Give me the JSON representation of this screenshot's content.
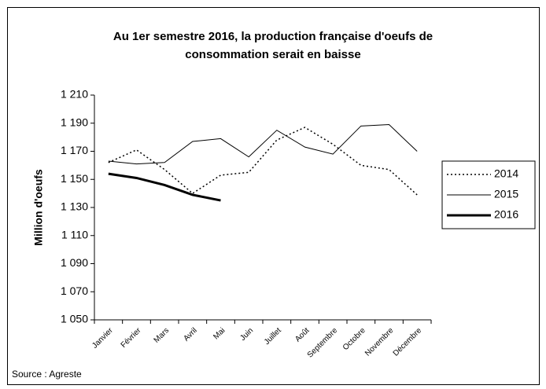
{
  "chart_data": {
    "type": "line",
    "title": [
      "Au 1er semestre 2016, la production française d'oeufs de",
      "consommation serait  en baisse"
    ],
    "y_label": "Million d'oeufs",
    "source": "Source : Agreste",
    "categories": [
      "Janvier",
      "Février",
      "Mars",
      "Avril",
      "Mai",
      "Juin",
      "Juillet",
      "Août",
      "Septembre",
      "Octobre",
      "Novembre",
      "Décembre"
    ],
    "series": [
      {
        "name": "2014",
        "color": "#000000",
        "line_style": "dotted",
        "line_width": 1.5,
        "values": [
          1162,
          1171,
          1157,
          1140,
          1153,
          1155,
          1178,
          1187,
          1175,
          1160,
          1157,
          1139
        ]
      },
      {
        "name": "2015",
        "color": "#000000",
        "line_style": "solid",
        "line_width": 1,
        "values": [
          1163,
          1161,
          1162,
          1177,
          1179,
          1166,
          1185,
          1173,
          1168,
          1188,
          1189,
          1170
        ]
      },
      {
        "name": "2016",
        "color": "#000000",
        "line_style": "solid",
        "line_width": 3,
        "values": [
          1154,
          1151,
          1146,
          1139,
          1135,
          null,
          null,
          null,
          null,
          null,
          null,
          null
        ]
      }
    ],
    "ylim": [
      1050,
      1210
    ],
    "yticks": [
      {
        "value": 1050,
        "label": "1 050"
      },
      {
        "value": 1070,
        "label": "1 070"
      },
      {
        "value": 1090,
        "label": "1 090"
      },
      {
        "value": 1110,
        "label": "1 110"
      },
      {
        "value": 1130,
        "label": "1 130"
      },
      {
        "value": 1150,
        "label": "1 150"
      },
      {
        "value": 1170,
        "label": "1 170"
      },
      {
        "value": 1190,
        "label": "1 190"
      },
      {
        "value": 1210,
        "label": "1 210"
      }
    ],
    "grid": false,
    "legend": "right"
  }
}
